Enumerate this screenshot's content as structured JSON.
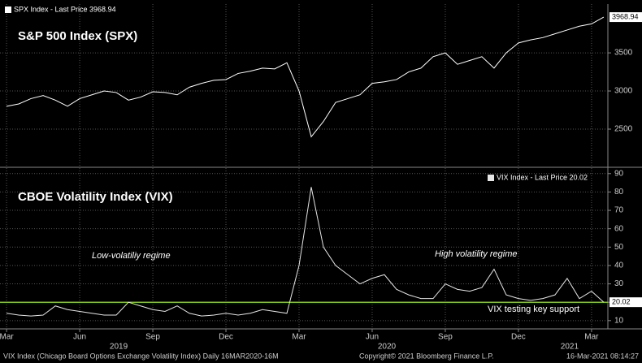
{
  "chart_data": [
    {
      "type": "line",
      "title": "S&P 500 Index (SPX)",
      "x": [
        0,
        0.5,
        1,
        1.5,
        2,
        2.5,
        3,
        3.5,
        4,
        4.5,
        5,
        5.5,
        6,
        6.5,
        7,
        7.5,
        8,
        8.5,
        9,
        9.5,
        10,
        10.5,
        11,
        11.5,
        12,
        12.5,
        13,
        13.5,
        14,
        14.5,
        15,
        15.5,
        16,
        16.5,
        17,
        17.5,
        18,
        18.5,
        19,
        19.5,
        20,
        20.5,
        21,
        21.5,
        22,
        22.5,
        23,
        23.5,
        24,
        24.5
      ],
      "xlim": [
        -0.27,
        24.67
      ],
      "series": [
        {
          "name": "SPX Index - Last Price 3968.94",
          "color": "#ffffff",
          "values": [
            2800,
            2830,
            2900,
            2940,
            2880,
            2800,
            2900,
            2950,
            3000,
            2980,
            2880,
            2920,
            2990,
            2980,
            2950,
            3050,
            3100,
            3140,
            3150,
            3230,
            3260,
            3300,
            3290,
            3370,
            3000,
            2400,
            2600,
            2850,
            2900,
            2950,
            3100,
            3120,
            3150,
            3250,
            3300,
            3450,
            3500,
            3350,
            3400,
            3450,
            3300,
            3500,
            3630,
            3670,
            3700,
            3750,
            3800,
            3850,
            3880,
            3968.94
          ]
        }
      ],
      "ylim": [
        2010,
        4140
      ],
      "yticks": [
        2500,
        3000,
        3500
      ],
      "grid": true
    },
    {
      "type": "line",
      "title": "CBOE Volatility Index (VIX)",
      "x": [
        0,
        0.5,
        1,
        1.5,
        2,
        2.5,
        3,
        3.5,
        4,
        4.5,
        5,
        5.5,
        6,
        6.5,
        7,
        7.5,
        8,
        8.5,
        9,
        9.5,
        10,
        10.5,
        11,
        11.5,
        12,
        12.5,
        13,
        13.5,
        14,
        14.5,
        15,
        15.5,
        16,
        16.5,
        17,
        17.5,
        18,
        18.5,
        19,
        19.5,
        20,
        20.5,
        21,
        21.5,
        22,
        22.5,
        23,
        23.5,
        24,
        24.5
      ],
      "xlim": [
        -0.27,
        24.67
      ],
      "series": [
        {
          "name": "VIX Index - Last Price 20.02",
          "color": "#e6e6e6",
          "values": [
            14,
            13,
            12.5,
            13,
            18,
            16,
            15,
            14,
            13,
            13,
            20,
            18,
            16,
            15,
            18,
            14,
            12.5,
            13,
            14,
            13,
            14,
            16,
            15,
            14,
            40,
            82.69,
            50,
            40,
            35,
            30,
            33,
            35,
            27,
            24,
            22,
            22,
            30,
            27,
            26,
            28,
            38,
            24,
            22,
            21,
            22,
            24,
            33,
            22,
            26,
            20.02
          ]
        }
      ],
      "ylim": [
        5.5,
        93
      ],
      "yticks": [
        10,
        20,
        30,
        40,
        50,
        60,
        70,
        80,
        90
      ],
      "xticks": [
        {
          "value": 0,
          "label": "Mar"
        },
        {
          "value": 3,
          "label": "Jun"
        },
        {
          "value": 6,
          "label": "Sep"
        },
        {
          "value": 9,
          "label": "Dec"
        },
        {
          "value": 12,
          "label": "Mar"
        },
        {
          "value": 15,
          "label": "Jun"
        },
        {
          "value": 18,
          "label": "Sep"
        },
        {
          "value": 21,
          "label": "Dec"
        },
        {
          "value": 24,
          "label": "Mar"
        }
      ],
      "x_year_labels": [
        {
          "value": 4.6,
          "label": "2019"
        },
        {
          "value": 15.6,
          "label": "2020"
        },
        {
          "value": 23.1,
          "label": "2021"
        }
      ],
      "grid": true,
      "reference_line": {
        "value": 20,
        "color": "#7ec322",
        "label": "VIX testing key support"
      },
      "annotations": [
        "Low-volatiliy regime",
        "High volatility regime"
      ]
    }
  ],
  "footer": {
    "left": "VIX Index (Chicago Board Options Exchange Volatility Index)  Daily 16MAR2020-16M",
    "center": "Copyright© 2021 Bloomberg Finance L.P.",
    "right": "16-Mar-2021 08:14:27"
  }
}
